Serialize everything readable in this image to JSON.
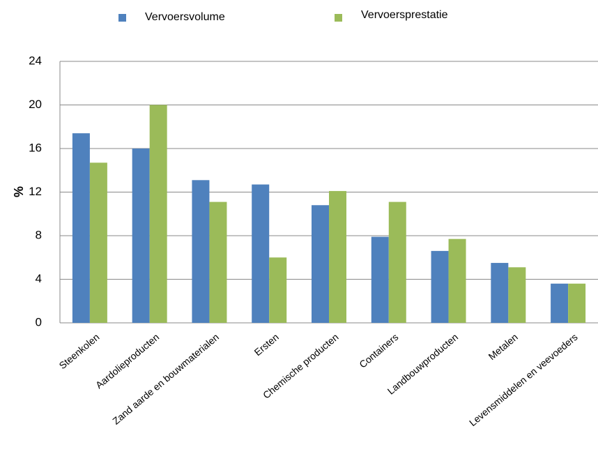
{
  "chart_data": {
    "type": "bar",
    "y_label": "%",
    "categories": [
      "Steenkolen",
      "Aardolieproducten",
      "Zand aarde en bouwmaterialen",
      "Ersten",
      "Chemische producten",
      "Containers",
      "Landbouwproducten",
      "Metalen",
      "Levensmiddelen en veevoeders"
    ],
    "series": [
      {
        "name": "Vervoersvolume",
        "color": "#4f81bd",
        "values": [
          17.4,
          16.0,
          13.1,
          12.7,
          10.8,
          7.9,
          6.6,
          5.5,
          3.6
        ]
      },
      {
        "name": "Vervoersprestatie",
        "color": "#9bbb59",
        "values": [
          14.7,
          20.0,
          11.1,
          6.0,
          12.1,
          11.1,
          7.7,
          5.1,
          3.6
        ]
      }
    ],
    "ylim": [
      0,
      24
    ],
    "yticks": [
      0,
      4,
      8,
      12,
      16,
      20,
      24
    ],
    "grid": true,
    "legend": "top"
  }
}
